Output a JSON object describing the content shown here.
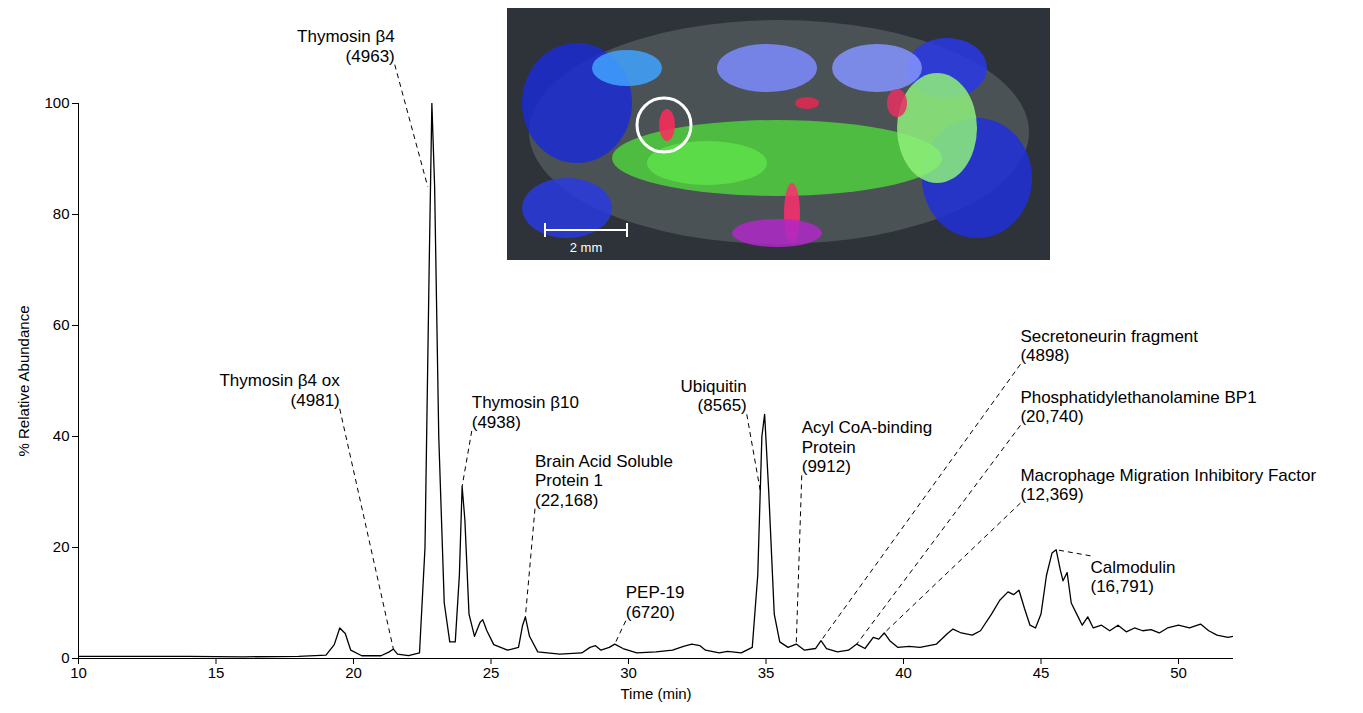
{
  "chart_data": {
    "type": "line",
    "color": "#000000",
    "xlabel": "Time (min)",
    "ylabel": "% Relative Abundance",
    "xlim": [
      10,
      52
    ],
    "ylim": [
      0,
      100
    ],
    "xticks": [
      10,
      15,
      20,
      25,
      30,
      35,
      40,
      45,
      50
    ],
    "yticks": [
      0,
      20,
      40,
      60,
      80,
      100
    ],
    "grid": false,
    "x": [
      10,
      12,
      14,
      16,
      18,
      19,
      19.3,
      19.5,
      19.7,
      19.9,
      20.3,
      21,
      21.3,
      21.45,
      21.6,
      22,
      22.4,
      22.6,
      22.75,
      22.85,
      22.95,
      23.1,
      23.3,
      23.5,
      23.7,
      23.85,
      23.95,
      24.05,
      24.2,
      24.4,
      24.6,
      24.7,
      24.85,
      25.1,
      25.6,
      26.0,
      26.15,
      26.25,
      26.4,
      26.7,
      27.5,
      28.3,
      28.6,
      28.8,
      29.0,
      29.3,
      29.5,
      29.8,
      30.3,
      31,
      31.6,
      32.0,
      32.3,
      32.6,
      32.8,
      33.3,
      33.6,
      34.1,
      34.5,
      34.7,
      34.85,
      34.95,
      35.1,
      35.3,
      35.5,
      35.8,
      36.1,
      36.4,
      36.8,
      37.0,
      37.2,
      37.6,
      38.0,
      38.3,
      38.6,
      38.9,
      39.1,
      39.3,
      39.5,
      39.8,
      40.2,
      40.6,
      41.2,
      41.6,
      41.8,
      42.1,
      42.5,
      42.8,
      43.2,
      43.5,
      43.8,
      44.0,
      44.2,
      44.4,
      44.6,
      44.8,
      45.0,
      45.2,
      45.4,
      45.55,
      45.7,
      45.8,
      45.95,
      46.1,
      46.3,
      46.5,
      46.7,
      46.9,
      47.2,
      47.5,
      47.8,
      48.1,
      48.4,
      48.7,
      49.0,
      49.3,
      49.6,
      50.0,
      50.4,
      50.8,
      51.1,
      51.4,
      51.8,
      52
    ],
    "values": [
      0.4,
      0.4,
      0.4,
      0.3,
      0.4,
      0.6,
      2.5,
      5.5,
      4.5,
      1.5,
      0.5,
      0.5,
      1.2,
      1.7,
      0.8,
      0.5,
      1.0,
      20,
      70,
      100,
      85,
      40,
      10,
      3,
      3,
      15,
      31,
      25,
      8,
      4,
      6.5,
      7,
      5,
      2.5,
      1.5,
      2,
      6,
      7.5,
      4,
      1.2,
      0.8,
      1,
      2,
      2.3,
      1.5,
      2,
      2.6,
      1.8,
      1,
      1.2,
      1.5,
      2.2,
      2.6,
      2.3,
      1.5,
      1,
      1.3,
      1,
      2,
      15,
      40,
      44,
      30,
      8,
      3,
      2,
      2.6,
      1.5,
      1.8,
      3.2,
      1.8,
      1.2,
      1.5,
      2.6,
      1.8,
      3.8,
      3.5,
      4.6,
      3.2,
      2,
      2.2,
      2,
      2.6,
      4.5,
      5.3,
      4.6,
      4.2,
      5,
      8,
      10.5,
      12,
      11.5,
      12.3,
      9,
      6,
      5.5,
      8,
      15,
      19,
      19.6,
      16,
      14,
      15.5,
      10,
      8,
      6,
      7.5,
      5.5,
      6,
      5,
      6,
      4.8,
      5.5,
      5,
      5.2,
      4.6,
      5.5,
      6,
      5.5,
      6.2,
      5,
      4.2,
      3.8,
      4
    ],
    "annotations": [
      {
        "text": [
          "Thymosin β4 ox",
          "(4981)"
        ],
        "x": 21.45,
        "y": 1.7,
        "label_x": 19.5,
        "label_y": 45
      },
      {
        "text": [
          "Thymosin β4",
          "(4963)"
        ],
        "x": 22.7,
        "y": 85,
        "label_x": 21.5,
        "label_y": 107
      },
      {
        "text": [
          "Thymosin β10",
          "(4938)"
        ],
        "x": 23.95,
        "y": 31,
        "label_x": 24.3,
        "label_y": 41
      },
      {
        "text": [
          "Brain Acid Soluble",
          "Protein 1",
          "(22,168)"
        ],
        "x": 26.25,
        "y": 7.5,
        "label_x": 26.6,
        "label_y": 27
      },
      {
        "text": [
          "PEP-19",
          "(6720)"
        ],
        "x": 29.5,
        "y": 2.6,
        "label_x": 29.9,
        "label_y": 6.8
      },
      {
        "text": [
          "Ubiquitin",
          "(8565)"
        ],
        "x": 34.8,
        "y": 30,
        "label_x": 34.3,
        "label_y": 44
      },
      {
        "text": [
          "Acyl CoA-binding",
          "Protein",
          "(9912)"
        ],
        "x": 36.1,
        "y": 2.6,
        "label_x": 36.3,
        "label_y": 33
      },
      {
        "text": [
          "Secretoneurin fragment",
          "(4898)"
        ],
        "x": 37.0,
        "y": 3.2,
        "label_x": 44.25,
        "label_y": 53
      },
      {
        "text": [
          "Phosphatidylethanolamine BP1",
          "(20,740)"
        ],
        "x": 38.3,
        "y": 2.6,
        "label_x": 44.25,
        "label_y": 42
      },
      {
        "text": [
          "Macrophage Migration Inhibitory Factor",
          "(12,369)"
        ],
        "x": 39.3,
        "y": 4.6,
        "label_x": 44.25,
        "label_y": 28
      },
      {
        "text": [
          "Calmodulin",
          "(16,791)"
        ],
        "x": 45.55,
        "y": 19.6,
        "label_x": 46.8,
        "label_y": 18.5
      }
    ],
    "inset": {
      "scale_bar": "2 mm"
    }
  }
}
